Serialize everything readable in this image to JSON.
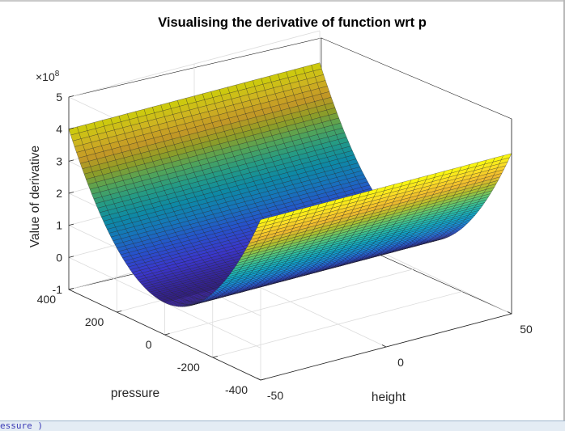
{
  "chart_data": {
    "type": "surface",
    "title": "Visualising the derivative of function wrt p",
    "xlabel": "height",
    "ylabel": "pressure",
    "zlabel": "Value of derivative",
    "z_exponent_label": "×10",
    "z_exponent_power": "8",
    "x_ticks": [
      "-50",
      "0",
      "50"
    ],
    "y_ticks": [
      "-400",
      "-200",
      "0",
      "200",
      "400"
    ],
    "z_ticks": [
      "-1",
      "0",
      "1",
      "2",
      "3",
      "4",
      "5"
    ],
    "xlim": [
      -50,
      50
    ],
    "ylim": [
      -400,
      400
    ],
    "zlim": [
      -1,
      5
    ],
    "z_units_multiplier": 100000000,
    "surface_formula": "z = a * p^2 (independent of height)",
    "profile": {
      "pressure": [
        -400,
        -300,
        -200,
        -100,
        0,
        100,
        200,
        300,
        400
      ],
      "value": [
        4.0,
        2.25,
        1.0,
        0.25,
        0.0,
        0.25,
        1.0,
        2.25,
        4.0
      ]
    },
    "colormap": [
      "#3e26a8",
      "#4743f8",
      "#2f64f8",
      "#1b8ee3",
      "#11a8c8",
      "#2bbca3",
      "#63c76d",
      "#b2bf2c",
      "#f0b92f",
      "#fbdd26",
      "#f9fb0e"
    ],
    "grid": true,
    "box": true
  },
  "window": {
    "bottom_strip_text": "essure )"
  }
}
